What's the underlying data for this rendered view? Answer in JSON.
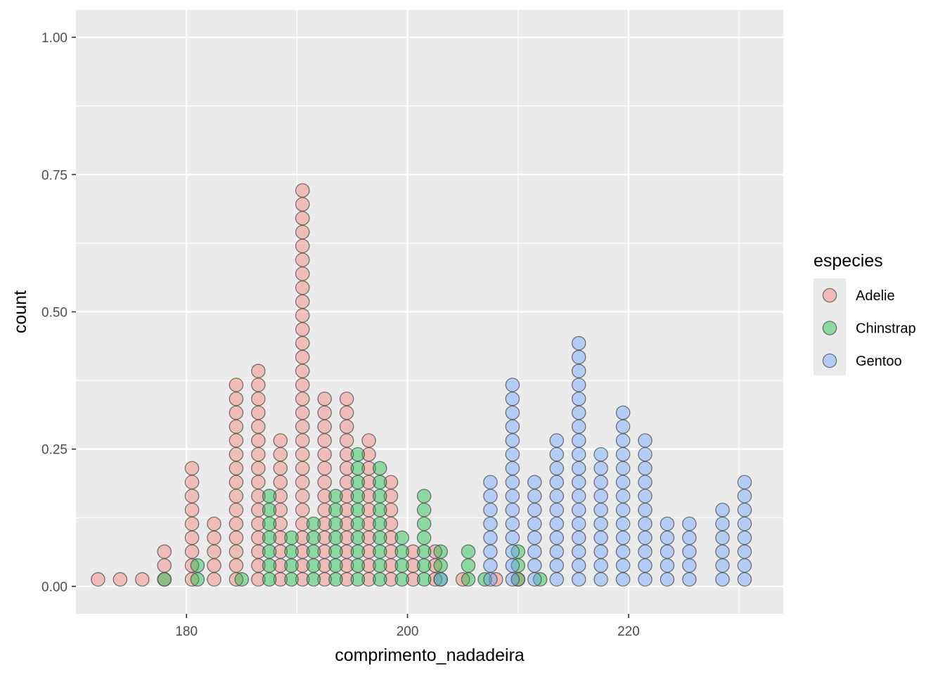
{
  "chart_data": {
    "type": "scatter",
    "subtype": "dotplot",
    "xlabel": "comprimento_nadadeira",
    "ylabel": "count",
    "xlim": [
      170,
      234
    ],
    "ylim": [
      -0.05,
      1.05
    ],
    "x_ticks": [
      180,
      200,
      220
    ],
    "y_ticks": [
      0.0,
      0.25,
      0.5,
      0.75,
      1.0
    ],
    "y_tick_labels": [
      "0.00",
      "0.25",
      "0.50",
      "0.75",
      "1.00"
    ],
    "x_tick_labels": [
      "180",
      "200",
      "220"
    ],
    "grid": true,
    "dot_height": 0.0253,
    "dot_base": 0.0127,
    "legend": {
      "title": "especies",
      "placement": "right",
      "entries": [
        "Adelie",
        "Chinstrap",
        "Gentoo"
      ]
    },
    "series": [
      {
        "name": "Adelie",
        "color": "#F8766D",
        "stacks": [
          {
            "x": 172,
            "n": 1
          },
          {
            "x": 174,
            "n": 1
          },
          {
            "x": 176,
            "n": 1
          },
          {
            "x": 178,
            "n": 3
          },
          {
            "x": 180.5,
            "n": 9
          },
          {
            "x": 182.5,
            "n": 5
          },
          {
            "x": 184.5,
            "n": 15
          },
          {
            "x": 186.5,
            "n": 16
          },
          {
            "x": 188.5,
            "n": 11
          },
          {
            "x": 190.5,
            "n": 29
          },
          {
            "x": 192.5,
            "n": 14
          },
          {
            "x": 194.5,
            "n": 14
          },
          {
            "x": 196.5,
            "n": 11
          },
          {
            "x": 198.5,
            "n": 8
          },
          {
            "x": 200.5,
            "n": 3
          },
          {
            "x": 202.5,
            "n": 3
          },
          {
            "x": 205,
            "n": 1
          },
          {
            "x": 208,
            "n": 1
          },
          {
            "x": 210,
            "n": 1
          }
        ]
      },
      {
        "name": "Chinstrap",
        "color": "#00BA38",
        "stacks": [
          {
            "x": 178,
            "n": 1
          },
          {
            "x": 181,
            "n": 2
          },
          {
            "x": 185,
            "n": 1
          },
          {
            "x": 187.5,
            "n": 7
          },
          {
            "x": 189.5,
            "n": 4
          },
          {
            "x": 191.5,
            "n": 5
          },
          {
            "x": 193.5,
            "n": 7
          },
          {
            "x": 195.5,
            "n": 10
          },
          {
            "x": 197.5,
            "n": 9
          },
          {
            "x": 199.5,
            "n": 4
          },
          {
            "x": 201.5,
            "n": 7
          },
          {
            "x": 203,
            "n": 3
          },
          {
            "x": 205.5,
            "n": 3
          },
          {
            "x": 207,
            "n": 1
          },
          {
            "x": 210,
            "n": 3
          },
          {
            "x": 212,
            "n": 1
          }
        ]
      },
      {
        "name": "Gentoo",
        "color": "#619CFF",
        "stacks": [
          {
            "x": 203,
            "n": 1
          },
          {
            "x": 207.5,
            "n": 8
          },
          {
            "x": 209.5,
            "n": 15
          },
          {
            "x": 211.5,
            "n": 8
          },
          {
            "x": 213.5,
            "n": 11
          },
          {
            "x": 215.5,
            "n": 18
          },
          {
            "x": 217.5,
            "n": 10
          },
          {
            "x": 219.5,
            "n": 13
          },
          {
            "x": 221.5,
            "n": 11
          },
          {
            "x": 223.5,
            "n": 5
          },
          {
            "x": 225.5,
            "n": 5
          },
          {
            "x": 228.5,
            "n": 6
          },
          {
            "x": 230.5,
            "n": 8
          }
        ]
      }
    ]
  }
}
